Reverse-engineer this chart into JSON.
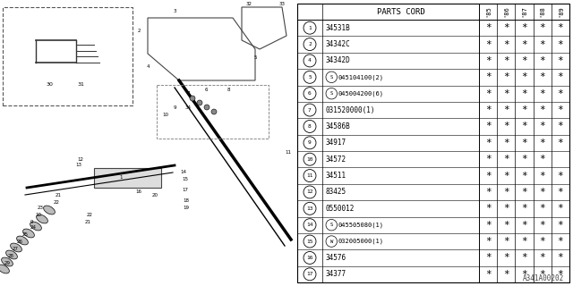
{
  "bg_color": "#f0f0f0",
  "diagram_id": "A341A00202",
  "parts": [
    {
      "num": "1",
      "code": "34531B",
      "marks": [
        true,
        true,
        true,
        true,
        true
      ]
    },
    {
      "num": "2",
      "code": "34342C",
      "marks": [
        true,
        true,
        true,
        true,
        true
      ]
    },
    {
      "num": "4",
      "code": "34342D",
      "marks": [
        true,
        true,
        true,
        true,
        true
      ]
    },
    {
      "num": "5",
      "code": "S045104100(2)",
      "marks": [
        true,
        true,
        true,
        true,
        true
      ],
      "s_prefix": true
    },
    {
      "num": "6",
      "code": "S045004200(6)",
      "marks": [
        true,
        true,
        true,
        true,
        true
      ],
      "s_prefix": true
    },
    {
      "num": "7",
      "code": "031520000(1)",
      "marks": [
        true,
        true,
        true,
        true,
        true
      ]
    },
    {
      "num": "8",
      "code": "34586B",
      "marks": [
        true,
        true,
        true,
        true,
        true
      ]
    },
    {
      "num": "9",
      "code": "34917",
      "marks": [
        true,
        true,
        true,
        true,
        true
      ]
    },
    {
      "num": "10",
      "code": "34572",
      "marks": [
        true,
        true,
        true,
        true,
        false
      ]
    },
    {
      "num": "11",
      "code": "34511",
      "marks": [
        true,
        true,
        true,
        true,
        true
      ]
    },
    {
      "num": "12",
      "code": "83425",
      "marks": [
        true,
        true,
        true,
        true,
        true
      ]
    },
    {
      "num": "13",
      "code": "0550012",
      "marks": [
        true,
        true,
        true,
        true,
        true
      ]
    },
    {
      "num": "14",
      "code": "S045505080(1)",
      "marks": [
        true,
        true,
        true,
        true,
        true
      ],
      "s_prefix": true
    },
    {
      "num": "15",
      "code": "W032005000(1)",
      "marks": [
        true,
        true,
        true,
        true,
        true
      ],
      "w_prefix": true
    },
    {
      "num": "16",
      "code": "34576",
      "marks": [
        true,
        true,
        true,
        true,
        true
      ]
    },
    {
      "num": "17",
      "code": "34377",
      "marks": [
        true,
        true,
        true,
        true,
        true
      ]
    }
  ],
  "col_headers": [
    "'85",
    "'86",
    "'87",
    "'88",
    "'89"
  ],
  "header_text": "PARTS CORD"
}
